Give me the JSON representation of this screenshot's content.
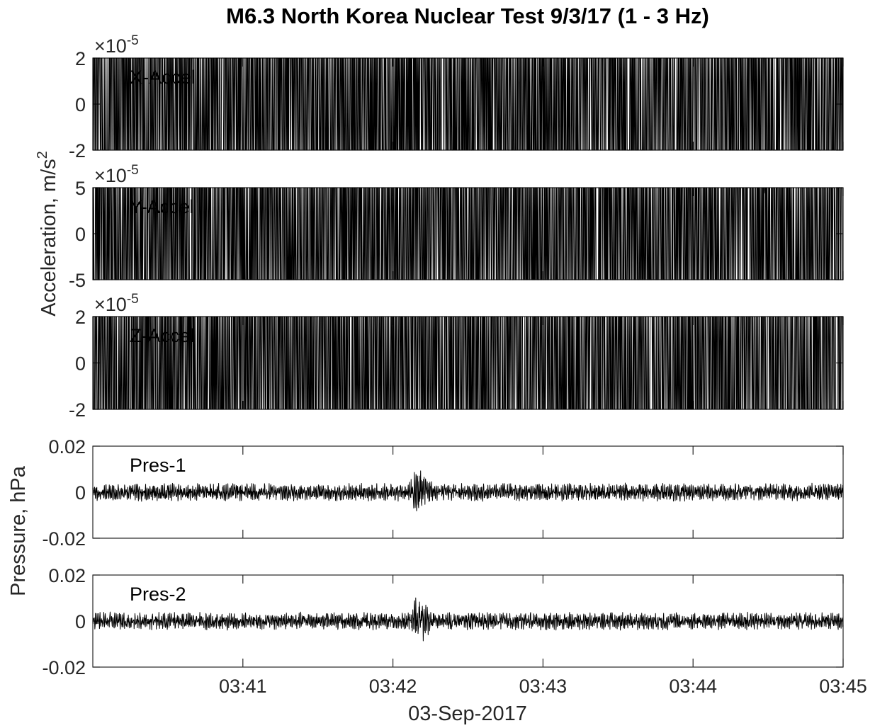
{
  "chart_data": {
    "type": "line",
    "title": "M6.3 North Korea Nuclear Test 9/3/17 (1 - 3 Hz)",
    "xlabel": "03-Sep-2017",
    "x_range": [
      "03:40:00",
      "03:45:00"
    ],
    "x_ticks": [
      "03:41",
      "03:42",
      "03:43",
      "03:44",
      "03:45"
    ],
    "ylabels": {
      "acceleration": {
        "base": "Acceleration, m/s",
        "sup": "2"
      },
      "pressure": "Pressure, hPa"
    },
    "multiplier": {
      "base": "×10",
      "sup": "-5"
    },
    "line_color": "#000000",
    "panels": [
      {
        "name": "X-Accel",
        "ylim": [
          -2e-05,
          2e-05
        ],
        "yticks": [
          "2",
          "0",
          "-2"
        ],
        "show_multiplier": true,
        "noise": 0.18,
        "bursts": [
          {
            "start": "03:42:07",
            "peak": "03:42:08",
            "end": "03:42:14",
            "amp": 1.4
          },
          {
            "start": "03:42:20",
            "peak": "03:42:38",
            "end": "03:43:20",
            "amp": 0.55
          }
        ]
      },
      {
        "name": "Y-Accel",
        "ylim": [
          -5e-05,
          5e-05
        ],
        "yticks": [
          "5",
          "0",
          "-5"
        ],
        "show_multiplier": true,
        "noise": 0.06,
        "bursts": [
          {
            "start": "03:42:08",
            "peak": "03:42:22",
            "end": "03:42:45",
            "amp": 2.4
          },
          {
            "start": "03:42:40",
            "peak": "03:42:55",
            "end": "03:43:40",
            "amp": 1.2
          }
        ]
      },
      {
        "name": "Z-Accel",
        "ylim": [
          -2e-05,
          2e-05
        ],
        "yticks": [
          "2",
          "0",
          "-2"
        ],
        "show_multiplier": true,
        "noise": 0.12,
        "bursts": [
          {
            "start": "03:42:07",
            "peak": "03:42:20",
            "end": "03:42:38",
            "amp": 1.8
          },
          {
            "start": "03:42:38",
            "peak": "03:42:50",
            "end": "03:43:05",
            "amp": 1.6
          },
          {
            "start": "03:43:00",
            "peak": "03:43:15",
            "end": "03:44:00",
            "amp": 0.55
          }
        ]
      },
      {
        "name": "Pres-1",
        "ylim": [
          -0.02,
          0.02
        ],
        "yticks": [
          "0.02",
          "0",
          "-0.02"
        ],
        "show_multiplier": false,
        "noise": 0.004,
        "bursts": [
          {
            "start": "03:42:05",
            "peak": "03:42:09",
            "end": "03:42:20",
            "amp": 0.013
          }
        ]
      },
      {
        "name": "Pres-2",
        "ylim": [
          -0.02,
          0.02
        ],
        "yticks": [
          "0.02",
          "0",
          "-0.02"
        ],
        "show_multiplier": false,
        "noise": 0.004,
        "bursts": [
          {
            "start": "03:42:06",
            "peak": "03:42:09",
            "end": "03:42:22",
            "amp": 0.012
          }
        ]
      }
    ]
  }
}
